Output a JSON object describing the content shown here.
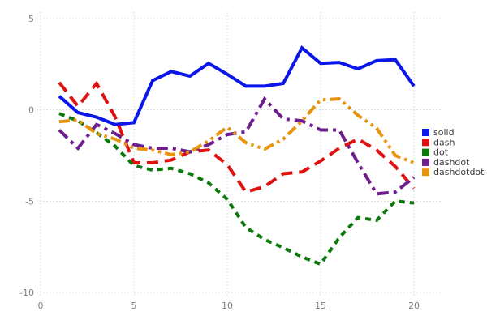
{
  "chart_data": {
    "type": "line",
    "title": "",
    "xlabel": "",
    "ylabel": "",
    "xlim": [
      0,
      20
    ],
    "ylim": [
      -10,
      5
    ],
    "xticks": [
      "0",
      "5",
      "10",
      "15",
      "20"
    ],
    "xtick_values": [
      0,
      5,
      10,
      15,
      20
    ],
    "yticks": [
      "-10",
      "-5",
      "0",
      "5"
    ],
    "ytick_values": [
      -10,
      -5,
      0,
      5
    ],
    "grid": true,
    "legend_position": "right",
    "x": [
      1,
      2,
      3,
      4,
      5,
      6,
      7,
      8,
      9,
      10,
      11,
      12,
      13,
      14,
      15,
      16,
      17,
      18,
      19,
      20
    ],
    "series": [
      {
        "name": "solid",
        "line_style": "solid",
        "color": "#0b16e8",
        "values": [
          0.75,
          -0.15,
          -0.4,
          -0.8,
          -0.7,
          1.6,
          2.1,
          1.85,
          2.55,
          1.95,
          1.3,
          1.3,
          1.45,
          3.4,
          2.55,
          2.6,
          2.25,
          2.7,
          2.75,
          1.3
        ]
      },
      {
        "name": "dash",
        "line_style": "dash",
        "color": "#e01111",
        "values": [
          1.5,
          0.2,
          1.45,
          -0.4,
          -2.9,
          -2.9,
          -2.75,
          -2.3,
          -2.2,
          -3.0,
          -4.5,
          -4.2,
          -3.5,
          -3.4,
          -2.8,
          -2.1,
          -1.6,
          -2.2,
          -3.1,
          -4.3
        ]
      },
      {
        "name": "dot",
        "line_style": "dot",
        "color": "#0b7a0b",
        "values": [
          -0.2,
          -0.6,
          -1.25,
          -2.0,
          -3.05,
          -3.3,
          -3.2,
          -3.5,
          -4.0,
          -4.9,
          -6.45,
          -7.1,
          -7.55,
          -8.05,
          -8.45,
          -7.0,
          -5.9,
          -6.05,
          -5.0,
          -5.1
        ]
      },
      {
        "name": "dashdot",
        "line_style": "dashdot",
        "color": "#6e1d8e",
        "values": [
          -1.1,
          -2.1,
          -0.8,
          -1.3,
          -1.9,
          -2.1,
          -2.1,
          -2.3,
          -1.9,
          -1.35,
          -1.2,
          0.6,
          -0.5,
          -0.6,
          -1.1,
          -1.1,
          -2.9,
          -4.6,
          -4.5,
          -3.7
        ]
      },
      {
        "name": "dashdotdot",
        "line_style": "dashdotdot",
        "color": "#e6940e",
        "values": [
          -0.65,
          -0.55,
          -1.3,
          -1.6,
          -2.1,
          -2.2,
          -2.45,
          -2.3,
          -1.7,
          -0.95,
          -1.8,
          -2.15,
          -1.6,
          -0.6,
          0.55,
          0.6,
          -0.3,
          -1.0,
          -2.5,
          -2.9
        ]
      }
    ],
    "style": {
      "grid_color": "#cfcfcf",
      "tick_color": "#7f7f7f",
      "legend_text_color": "#3a3a3a",
      "background": "#ffffff",
      "line_width": 4
    }
  }
}
